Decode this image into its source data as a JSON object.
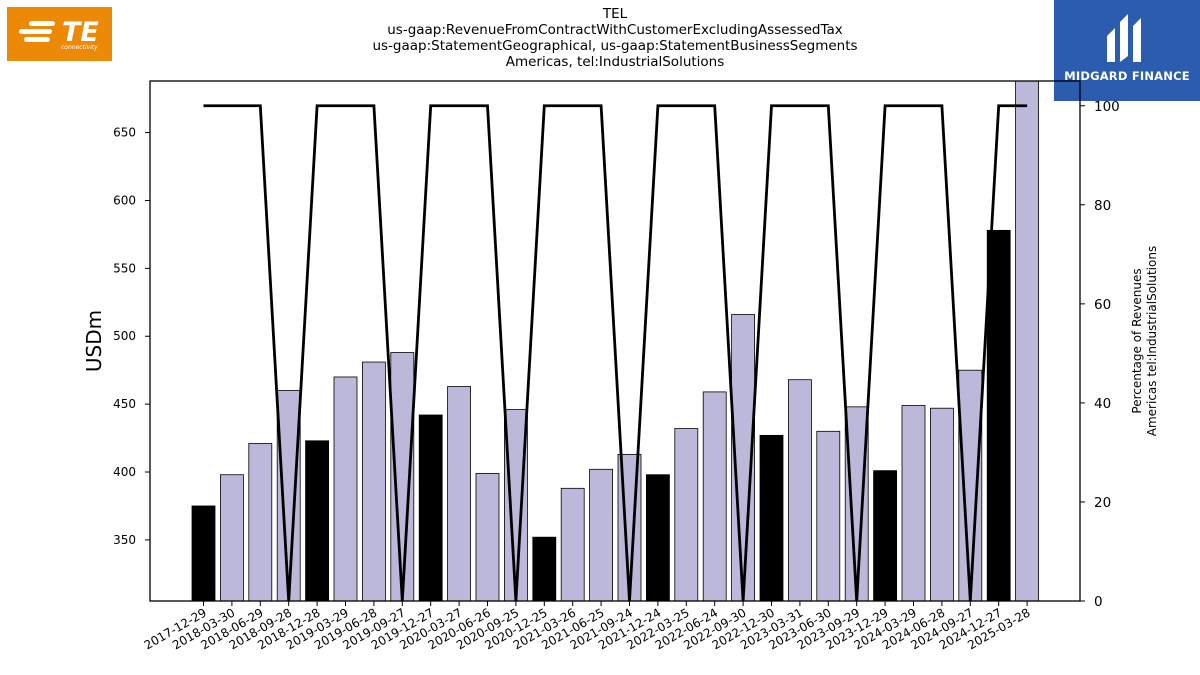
{
  "header": {
    "title_lines": [
      "TEL",
      "us-gaap:RevenueFromContractWithCustomerExcludingAssessedTax",
      "us-gaap:StatementGeographical, us-gaap:StatementBusinessSegments",
      "Americas, tel:IndustrialSolutions"
    ]
  },
  "logos": {
    "left": {
      "text": "TE",
      "subtext": "connectivity",
      "icon": "te-connectivity-logo",
      "color": "#EC8A08"
    },
    "right": {
      "text": "MIDGARD FINANCE",
      "icon": "midgard-finance-logo",
      "color": "#2B5CAE"
    }
  },
  "chart_data": {
    "type": "bar",
    "ylabel": "USDm",
    "y2label_lines": [
      "Percentage of Revenues",
      "Americas tel:IndustrialSolutions"
    ],
    "ylim": [
      305,
      688
    ],
    "y2lim": [
      0,
      105
    ],
    "yticks": [
      350,
      400,
      450,
      500,
      550,
      600,
      650
    ],
    "y2ticks": [
      0,
      20,
      40,
      60,
      80,
      100
    ],
    "categories": [
      "2017-12-29",
      "2018-03-30",
      "2018-06-29",
      "2018-09-28",
      "2018-12-28",
      "2019-03-29",
      "2019-06-28",
      "2019-09-27",
      "2019-12-27",
      "2020-03-27",
      "2020-06-26",
      "2020-09-25",
      "2020-12-25",
      "2021-03-26",
      "2021-06-25",
      "2021-09-24",
      "2021-12-24",
      "2022-03-25",
      "2022-06-24",
      "2022-09-30",
      "2022-12-30",
      "2023-03-31",
      "2023-06-30",
      "2023-09-29",
      "2023-12-29",
      "2024-03-29",
      "2024-06-28",
      "2024-09-27",
      "2024-12-27",
      "2025-03-28"
    ],
    "series": [
      {
        "type": "bar",
        "values": [
          375,
          398,
          421,
          460,
          423,
          470,
          481,
          488,
          442,
          463,
          399,
          446,
          352,
          388,
          402,
          413,
          398,
          432,
          459,
          516,
          427,
          468,
          430,
          448,
          401,
          449,
          447,
          475,
          578,
          690
        ],
        "highlight": [
          true,
          false,
          false,
          false,
          true,
          false,
          false,
          false,
          true,
          false,
          false,
          false,
          true,
          false,
          false,
          false,
          true,
          false,
          false,
          false,
          true,
          false,
          false,
          false,
          true,
          false,
          false,
          false,
          true,
          false
        ],
        "highlight_color": "#000000",
        "color": "#BCB8D9"
      },
      {
        "type": "line",
        "axis": "right",
        "values": [
          100,
          100,
          100,
          0,
          100,
          100,
          100,
          0,
          100,
          100,
          100,
          0,
          100,
          100,
          100,
          0,
          100,
          100,
          100,
          0,
          100,
          100,
          100,
          0,
          100,
          100,
          100,
          0,
          100,
          100
        ],
        "color": "#000000"
      }
    ],
    "grid": false
  }
}
